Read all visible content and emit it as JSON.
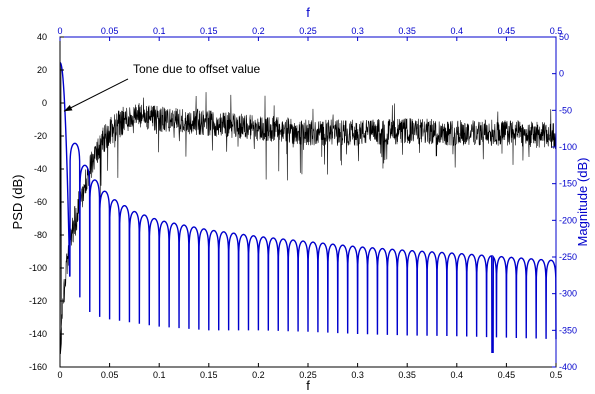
{
  "chart_data": {
    "type": "line",
    "title": "",
    "grid": false,
    "x_bottom": {
      "label": "f",
      "range": [
        0,
        0.5
      ],
      "ticks": [
        "0",
        "0.05",
        "0.1",
        "0.15",
        "0.2",
        "0.25",
        "0.3",
        "0.35",
        "0.4",
        "0.45",
        "0.5"
      ]
    },
    "x_top": {
      "label": "f",
      "range": [
        0,
        0.5
      ],
      "ticks": [
        "0",
        "0.05",
        "0.1",
        "0.15",
        "0.2",
        "0.25",
        "0.3",
        "0.35",
        "0.4",
        "0.45",
        "0.5"
      ]
    },
    "y_left": {
      "label": "PSD (dB)",
      "range": [
        -160,
        40
      ],
      "ticks": [
        "-160",
        "-140",
        "-120",
        "-100",
        "-80",
        "-60",
        "-40",
        "-20",
        "0",
        "20",
        "40"
      ]
    },
    "y_right": {
      "label": "Magnitude (dB)",
      "range": [
        -400,
        50
      ],
      "ticks": [
        "-400",
        "-350",
        "-300",
        "-250",
        "-200",
        "-150",
        "-100",
        "-50",
        "0",
        "50"
      ]
    },
    "series": [
      {
        "axis": "left",
        "color": "#000000",
        "style": "noisy",
        "x": [
          0,
          0.001,
          0.002,
          0.004,
          0.006,
          0.01,
          0.015,
          0.02,
          0.025,
          0.03,
          0.035,
          0.04,
          0.05,
          0.06,
          0.07,
          0.08,
          0.1,
          0.15,
          0.2,
          0.25,
          0.3,
          0.35,
          0.4,
          0.45,
          0.5
        ],
        "center": [
          -155,
          -145,
          -130,
          -115,
          -100,
          -85,
          -72,
          -60,
          -50,
          -40,
          -32,
          -25,
          -18,
          -12,
          -9,
          -8,
          -10,
          -12,
          -15,
          -18,
          -18,
          -17,
          -18,
          -18,
          -20
        ],
        "spread": [
          3,
          6,
          9,
          10,
          10,
          10,
          10,
          10,
          9,
          9,
          9,
          9,
          9,
          9,
          8,
          8,
          8,
          8,
          8,
          8,
          8,
          8,
          8,
          8,
          8
        ],
        "spike": {
          "x": 0.001,
          "y": 24
        }
      },
      {
        "axis": "right",
        "color": "#0000cc",
        "style": "spectral",
        "lobe_spacing": 0.01,
        "main_lobe_peak": 15,
        "envelope_x": [
          0.005,
          0.015,
          0.025,
          0.035,
          0.05,
          0.075,
          0.1,
          0.15,
          0.2,
          0.25,
          0.3,
          0.35,
          0.4,
          0.45,
          0.5
        ],
        "envelope_y": [
          -60,
          -95,
          -125,
          -145,
          -168,
          -188,
          -200,
          -213,
          -222,
          -229,
          -236,
          -241,
          -245,
          -250,
          -255
        ],
        "null_y": [
          -290,
          -305,
          -320,
          -330,
          -335,
          -340,
          -345,
          -350,
          -350,
          -352,
          -355,
          -357,
          -358,
          -360,
          -362
        ],
        "deep_null": {
          "x": 0.436,
          "y": -380
        }
      }
    ],
    "annotation": {
      "text": "Tone due to offset value",
      "x": 0.001,
      "y": -5
    }
  }
}
